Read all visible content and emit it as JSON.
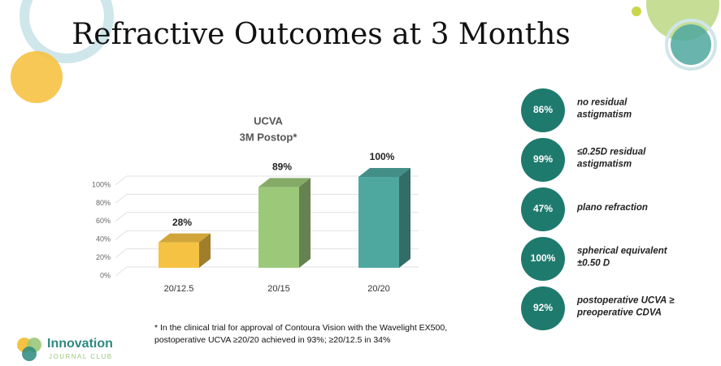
{
  "slide_title": "Refractive Outcomes at 3 Months",
  "chart_data": {
    "type": "bar",
    "title": "UCVA",
    "subtitle": "3M Postop*",
    "categories": [
      "20/12.5",
      "20/15",
      "20/20"
    ],
    "values": [
      28,
      89,
      100
    ],
    "value_labels": [
      "28%",
      "89%",
      "100%"
    ],
    "colors": [
      "#f6c244",
      "#9cc87a",
      "#4fa8a0"
    ],
    "ylim": [
      0,
      100
    ],
    "yticks": [
      {
        "value": 0,
        "label": "0%"
      },
      {
        "value": 20,
        "label": "20%"
      },
      {
        "value": 40,
        "label": "40%"
      },
      {
        "value": 60,
        "label": "60%"
      },
      {
        "value": 80,
        "label": "80%"
      },
      {
        "value": 100,
        "label": "100%"
      }
    ],
    "grid": true
  },
  "stats": [
    {
      "value": "86%",
      "label": [
        "no residual",
        "astigmatism"
      ]
    },
    {
      "value": "99%",
      "label": [
        "≤0.25D residual",
        "astigmatism"
      ]
    },
    {
      "value": "47%",
      "label": [
        "plano refraction"
      ]
    },
    {
      "value": "100%",
      "label": [
        "spherical equivalent",
        "±0.50 D"
      ]
    },
    {
      "value": "92%",
      "label": [
        "postoperative UCVA ≥",
        "preoperative CDVA"
      ]
    }
  ],
  "footnote": [
    "* In the clinical trial for approval of Contoura Vision with the Wavelight EX500,",
    "postoperative UCVA ≥20/20 achieved in 93%; ≥20/12.5 in 34%"
  ],
  "logo": {
    "name": "Innovation",
    "sub": "JOURNAL CLUB"
  }
}
